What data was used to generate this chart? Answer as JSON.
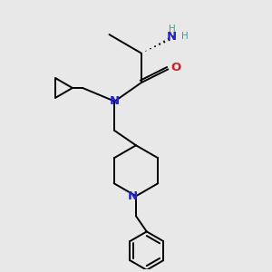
{
  "bg_color": "#e8e8e8",
  "C_color": "#000000",
  "N_teal": "#4a9a9a",
  "N_blue": "#2222cc",
  "O_color": "#cc2222",
  "lw": 1.4,
  "figsize": [
    3.0,
    3.0
  ],
  "dpi": 100,
  "xlim": [
    0,
    10
  ],
  "ylim": [
    0,
    10
  ]
}
